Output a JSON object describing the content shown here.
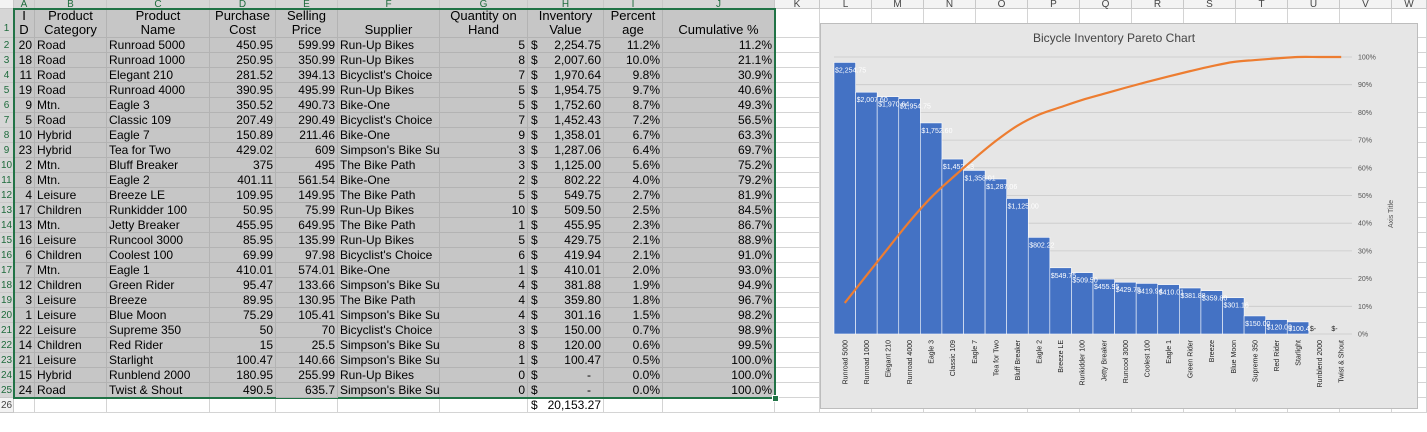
{
  "spreadsheet": {
    "columns": [
      "A",
      "B",
      "C",
      "D",
      "E",
      "F",
      "G",
      "H",
      "I",
      "J",
      "K",
      "L",
      "M",
      "N",
      "O",
      "P",
      "Q",
      "R",
      "S",
      "T",
      "U",
      "V",
      "W"
    ],
    "row_numbers": [
      "1",
      "2",
      "3",
      "4",
      "5",
      "6",
      "7",
      "8",
      "9",
      "10",
      "11",
      "12",
      "13",
      "14",
      "15",
      "16",
      "17",
      "18",
      "19",
      "20",
      "21",
      "22",
      "23",
      "24",
      "25",
      "26"
    ],
    "headers": {
      "id": [
        "I",
        "D"
      ],
      "category": [
        "Product",
        "Category"
      ],
      "name": [
        "Product",
        "Name"
      ],
      "cost": [
        "Purchase",
        "Cost"
      ],
      "price": [
        "Selling",
        "Price"
      ],
      "supplier": [
        "",
        "Supplier"
      ],
      "qty": [
        "Quantity on",
        "Hand"
      ],
      "value": [
        "Inventory",
        "Value"
      ],
      "pct": [
        "Percent",
        "age"
      ],
      "cum": [
        "",
        "Cumulative %"
      ]
    },
    "currency_symbol": "$",
    "rows": [
      {
        "id": "20",
        "category": "Road",
        "name": "Runroad 5000",
        "cost": "450.95",
        "price": "599.99",
        "supplier": "Run-Up Bikes",
        "qty": "5",
        "value": "2,254.75",
        "pct": "11.2%",
        "cum": "11.2%"
      },
      {
        "id": "18",
        "category": "Road",
        "name": "Runroad 1000",
        "cost": "250.95",
        "price": "350.99",
        "supplier": "Run-Up Bikes",
        "qty": "8",
        "value": "2,007.60",
        "pct": "10.0%",
        "cum": "21.1%"
      },
      {
        "id": "11",
        "category": "Road",
        "name": "Elegant 210",
        "cost": "281.52",
        "price": "394.13",
        "supplier": "Bicyclist's Choice",
        "qty": "7",
        "value": "1,970.64",
        "pct": "9.8%",
        "cum": "30.9%"
      },
      {
        "id": "19",
        "category": "Road",
        "name": "Runroad 4000",
        "cost": "390.95",
        "price": "495.99",
        "supplier": "Run-Up Bikes",
        "qty": "5",
        "value": "1,954.75",
        "pct": "9.7%",
        "cum": "40.6%"
      },
      {
        "id": "9",
        "category": "Mtn.",
        "name": "Eagle 3",
        "cost": "350.52",
        "price": "490.73",
        "supplier": "Bike-One",
        "qty": "5",
        "value": "1,752.60",
        "pct": "8.7%",
        "cum": "49.3%"
      },
      {
        "id": "5",
        "category": "Road",
        "name": "Classic 109",
        "cost": "207.49",
        "price": "290.49",
        "supplier": "Bicyclist's Choice",
        "qty": "7",
        "value": "1,452.43",
        "pct": "7.2%",
        "cum": "56.5%"
      },
      {
        "id": "10",
        "category": "Hybrid",
        "name": "Eagle 7",
        "cost": "150.89",
        "price": "211.46",
        "supplier": "Bike-One",
        "qty": "9",
        "value": "1,358.01",
        "pct": "6.7%",
        "cum": "63.3%"
      },
      {
        "id": "23",
        "category": "Hybrid",
        "name": "Tea for Two",
        "cost": "429.02",
        "price": "609",
        "supplier": "Simpson's Bike Supply",
        "qty": "3",
        "value": "1,287.06",
        "pct": "6.4%",
        "cum": "69.7%"
      },
      {
        "id": "2",
        "category": "Mtn.",
        "name": "Bluff Breaker",
        "cost": "375",
        "price": "495",
        "supplier": "The Bike Path",
        "qty": "3",
        "value": "1,125.00",
        "pct": "5.6%",
        "cum": "75.2%"
      },
      {
        "id": "8",
        "category": "Mtn.",
        "name": "Eagle 2",
        "cost": "401.11",
        "price": "561.54",
        "supplier": "Bike-One",
        "qty": "2",
        "value": "802.22",
        "pct": "4.0%",
        "cum": "79.2%"
      },
      {
        "id": "4",
        "category": "Leisure",
        "name": "Breeze LE",
        "cost": "109.95",
        "price": "149.95",
        "supplier": "The Bike Path",
        "qty": "5",
        "value": "549.75",
        "pct": "2.7%",
        "cum": "81.9%"
      },
      {
        "id": "17",
        "category": "Children",
        "name": "Runkidder 100",
        "cost": "50.95",
        "price": "75.99",
        "supplier": "Run-Up Bikes",
        "qty": "10",
        "value": "509.50",
        "pct": "2.5%",
        "cum": "84.5%"
      },
      {
        "id": "13",
        "category": "Mtn.",
        "name": "Jetty Breaker",
        "cost": "455.95",
        "price": "649.95",
        "supplier": "The Bike Path",
        "qty": "1",
        "value": "455.95",
        "pct": "2.3%",
        "cum": "86.7%"
      },
      {
        "id": "16",
        "category": "Leisure",
        "name": "Runcool 3000",
        "cost": "85.95",
        "price": "135.99",
        "supplier": "Run-Up Bikes",
        "qty": "5",
        "value": "429.75",
        "pct": "2.1%",
        "cum": "88.9%"
      },
      {
        "id": "6",
        "category": "Children",
        "name": "Coolest 100",
        "cost": "69.99",
        "price": "97.98",
        "supplier": "Bicyclist's Choice",
        "qty": "6",
        "value": "419.94",
        "pct": "2.1%",
        "cum": "91.0%"
      },
      {
        "id": "7",
        "category": "Mtn.",
        "name": "Eagle 1",
        "cost": "410.01",
        "price": "574.01",
        "supplier": "Bike-One",
        "qty": "1",
        "value": "410.01",
        "pct": "2.0%",
        "cum": "93.0%"
      },
      {
        "id": "12",
        "category": "Children",
        "name": "Green Rider",
        "cost": "95.47",
        "price": "133.66",
        "supplier": "Simpson's Bike Supply",
        "qty": "4",
        "value": "381.88",
        "pct": "1.9%",
        "cum": "94.9%"
      },
      {
        "id": "3",
        "category": "Leisure",
        "name": "Breeze",
        "cost": "89.95",
        "price": "130.95",
        "supplier": "The Bike Path",
        "qty": "4",
        "value": "359.80",
        "pct": "1.8%",
        "cum": "96.7%"
      },
      {
        "id": "1",
        "category": "Leisure",
        "name": "Blue Moon",
        "cost": "75.29",
        "price": "105.41",
        "supplier": "Simpson's Bike Supply",
        "qty": "4",
        "value": "301.16",
        "pct": "1.5%",
        "cum": "98.2%"
      },
      {
        "id": "22",
        "category": "Leisure",
        "name": "Supreme 350",
        "cost": "50",
        "price": "70",
        "supplier": "Bicyclist's Choice",
        "qty": "3",
        "value": "150.00",
        "pct": "0.7%",
        "cum": "98.9%"
      },
      {
        "id": "14",
        "category": "Children",
        "name": "Red Rider",
        "cost": "15",
        "price": "25.5",
        "supplier": "Simpson's Bike Supply",
        "qty": "8",
        "value": "120.00",
        "pct": "0.6%",
        "cum": "99.5%"
      },
      {
        "id": "21",
        "category": "Leisure",
        "name": "Starlight",
        "cost": "100.47",
        "price": "140.66",
        "supplier": "Simpson's Bike Supply",
        "qty": "1",
        "value": "100.47",
        "pct": "0.5%",
        "cum": "100.0%"
      },
      {
        "id": "15",
        "category": "Hybrid",
        "name": "Runblend 2000",
        "cost": "180.95",
        "price": "255.99",
        "supplier": "Run-Up Bikes",
        "qty": "0",
        "value": "-",
        "pct": "0.0%",
        "cum": "100.0%"
      },
      {
        "id": "24",
        "category": "Road",
        "name": "Twist & Shout",
        "cost": "490.5",
        "price": "635.7",
        "supplier": "Simpson's Bike Supply",
        "qty": "0",
        "value": "-",
        "pct": "0.0%",
        "cum": "100.0%"
      }
    ],
    "total_value": "20,153.27"
  },
  "chart_data": {
    "type": "bar",
    "title": "Bicycle Inventory Pareto Chart",
    "ylabel_right": "Axis Title",
    "categories": [
      "Runroad 5000",
      "Runroad 1000",
      "Elegant 210",
      "Runroad 4000",
      "Eagle 3",
      "Classic 109",
      "Eagle 7",
      "Tea for Two",
      "Bluff Breaker",
      "Eagle 2",
      "Breeze LE",
      "Runkidder 100",
      "Jetty Breaker",
      "Runcool 3000",
      "Coolest 100",
      "Eagle 1",
      "Green Rider",
      "Breeze",
      "Blue Moon",
      "Supreme 350",
      "Red Rider",
      "Starlight",
      "Runblend 2000",
      "Twist & Shout"
    ],
    "values": [
      2254.75,
      2007.6,
      1970.64,
      1954.75,
      1752.6,
      1452.43,
      1358.01,
      1287.06,
      1125.0,
      802.22,
      549.75,
      509.5,
      455.95,
      429.75,
      419.94,
      410.01,
      381.88,
      359.8,
      301.16,
      150.0,
      120.0,
      100.47,
      0,
      0
    ],
    "data_labels": [
      "$2,254.75",
      "$2,007.60",
      "$1,970.64",
      "$1,954.75",
      "$1,752.60",
      "$1,452.43",
      "$1,358.01",
      "$1,287.06",
      "$1,125.00",
      "$802.22",
      "$549.75",
      "$509.50",
      "$455.95",
      "$429.75",
      "$419.94",
      "$410.01",
      "$381.88",
      "$359.80",
      "$301.16",
      "$150.00",
      "$120.00",
      "$100.47",
      "$-",
      "$-"
    ],
    "cumulative": [
      11.2,
      21.1,
      30.9,
      40.6,
      49.3,
      56.5,
      63.3,
      69.7,
      75.2,
      79.2,
      81.9,
      84.5,
      86.7,
      88.9,
      91.0,
      93.0,
      94.9,
      96.7,
      98.2,
      98.9,
      99.5,
      100.0,
      100.0,
      100.0
    ],
    "ylim": [
      0,
      2300
    ],
    "y2lim": [
      0,
      100
    ],
    "y2_ticks": [
      "0%",
      "10%",
      "20%",
      "30%",
      "40%",
      "50%",
      "60%",
      "70%",
      "80%",
      "90%",
      "100%"
    ],
    "grid": true,
    "legend": "none",
    "colors": {
      "bars": "#4472c4",
      "line": "#ed7d31",
      "background": "#e6e6e6"
    }
  }
}
